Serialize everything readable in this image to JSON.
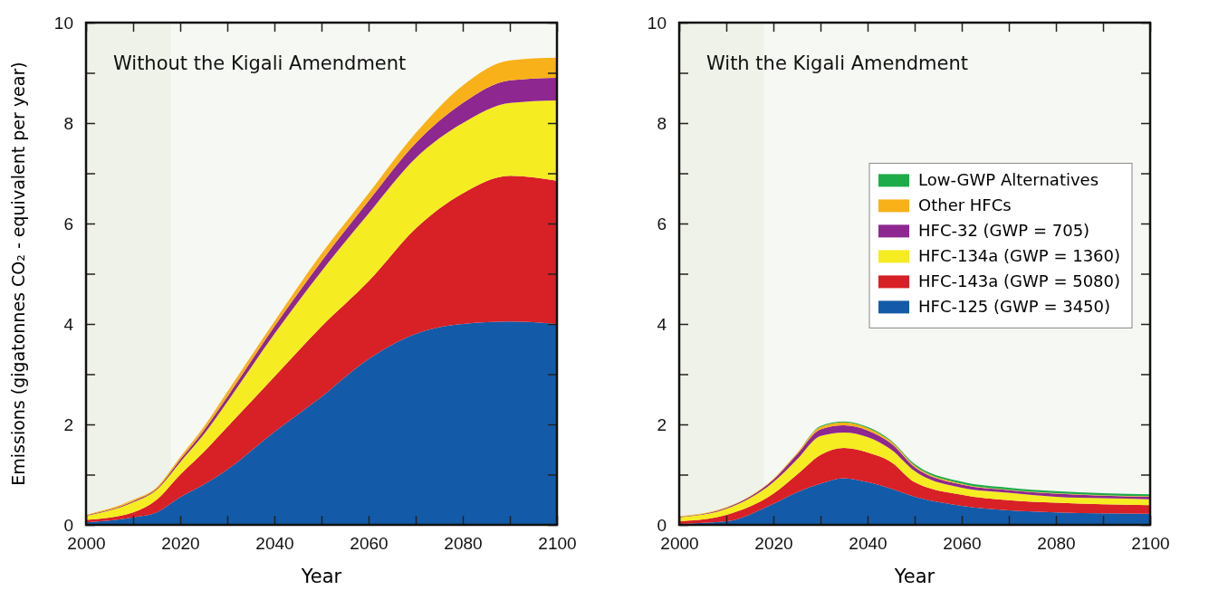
{
  "chart_data": [
    {
      "type": "area",
      "stacked": true,
      "title": "Without the Kigali Amendment",
      "xlabel": "Year",
      "ylabel": "Emissions (gigatonnes CO₂ - equivalent per year)",
      "x": [
        2000,
        2010,
        2015,
        2020,
        2025,
        2030,
        2040,
        2050,
        2060,
        2070,
        2080,
        2090,
        2100
      ],
      "series": [
        {
          "color": "#135ba8",
          "values": [
            0.05,
            0.15,
            0.25,
            0.55,
            0.8,
            1.1,
            1.85,
            2.55,
            3.3,
            3.8,
            4.0,
            4.05,
            4.0
          ]
        },
        {
          "color": "#d82027",
          "values": [
            0.05,
            0.1,
            0.25,
            0.45,
            0.65,
            0.85,
            1.1,
            1.4,
            1.55,
            2.1,
            2.6,
            2.9,
            2.85
          ]
        },
        {
          "color": "#f5ec22",
          "values": [
            0.08,
            0.2,
            0.2,
            0.25,
            0.35,
            0.5,
            0.85,
            1.1,
            1.35,
            1.4,
            1.4,
            1.45,
            1.6
          ]
        },
        {
          "color": "#8e278f",
          "values": [
            0.01,
            0.02,
            0.02,
            0.05,
            0.08,
            0.1,
            0.15,
            0.2,
            0.25,
            0.3,
            0.4,
            0.45,
            0.45
          ]
        },
        {
          "color": "#f8b119",
          "values": [
            0.01,
            0.03,
            0.03,
            0.05,
            0.07,
            0.1,
            0.1,
            0.15,
            0.15,
            0.2,
            0.35,
            0.4,
            0.4
          ]
        }
      ],
      "xlim": [
        2000,
        2100
      ],
      "xticks": [
        2000,
        {
          "value": 2010,
          "label": null
        },
        2020,
        {
          "value": 2030,
          "label": null
        },
        2040,
        {
          "value": 2050,
          "label": null
        },
        2060,
        {
          "value": 2070,
          "label": null
        },
        2080,
        {
          "value": 2090,
          "label": null
        },
        2100
      ],
      "ylim": [
        0,
        10
      ],
      "yticks": [
        0,
        {
          "value": 1,
          "label": null
        },
        2,
        {
          "value": 3,
          "label": null
        },
        4,
        {
          "value": 5,
          "label": null
        },
        6,
        {
          "value": 7,
          "label": null
        },
        8,
        {
          "value": 9,
          "label": null
        },
        10
      ],
      "bands": [
        {
          "axis": "x",
          "from": 2000,
          "to": 2018,
          "color": "#eef2e8"
        }
      ],
      "legend": false
    },
    {
      "type": "area",
      "stacked": true,
      "title": "With the Kigali Amendment",
      "xlabel": "Year",
      "x": [
        2000,
        2010,
        2020,
        2025,
        2030,
        2035,
        2040,
        2045,
        2050,
        2060,
        2070,
        2080,
        2090,
        2100
      ],
      "series": [
        {
          "name": "HFC-125 (GWP = 3450)",
          "color": "#135ba8",
          "values": [
            0.02,
            0.07,
            0.42,
            0.65,
            0.82,
            0.93,
            0.85,
            0.72,
            0.56,
            0.38,
            0.29,
            0.25,
            0.23,
            0.22
          ]
        },
        {
          "name": "HFC-143a (GWP = 5080)",
          "color": "#d82027",
          "values": [
            0.05,
            0.13,
            0.2,
            0.35,
            0.57,
            0.6,
            0.59,
            0.53,
            0.29,
            0.22,
            0.2,
            0.19,
            0.18,
            0.17
          ]
        },
        {
          "name": "HFC-134a (GWP = 1360)",
          "color": "#f5ec22",
          "values": [
            0.08,
            0.12,
            0.23,
            0.3,
            0.38,
            0.31,
            0.31,
            0.25,
            0.22,
            0.14,
            0.15,
            0.12,
            0.12,
            0.12
          ]
        },
        {
          "name": "HFC-32 (GWP = 705)",
          "color": "#8e278f",
          "values": [
            0.01,
            0.02,
            0.05,
            0.1,
            0.13,
            0.14,
            0.13,
            0.12,
            0.08,
            0.06,
            0.05,
            0.06,
            0.05,
            0.05
          ]
        },
        {
          "name": "Other HFCs",
          "color": "#f8b119",
          "values": [
            0.01,
            0.01,
            0.02,
            0.03,
            0.05,
            0.06,
            0.05,
            0.04,
            0.03,
            0.02,
            0.01,
            0.01,
            0.01,
            0.01
          ]
        },
        {
          "name": "Low-GWP Alternatives",
          "color": "#1eab4a",
          "values": [
            0,
            0,
            0,
            0,
            0.02,
            0.02,
            0.02,
            0.02,
            0.03,
            0.04,
            0.04,
            0.04,
            0.04,
            0.04
          ]
        }
      ],
      "xlim": [
        2000,
        2100
      ],
      "xticks": [
        2000,
        {
          "value": 2010,
          "label": null
        },
        2020,
        {
          "value": 2030,
          "label": null
        },
        2040,
        {
          "value": 2050,
          "label": null
        },
        2060,
        {
          "value": 2070,
          "label": null
        },
        2080,
        {
          "value": 2090,
          "label": null
        },
        2100
      ],
      "ylim": [
        0,
        10
      ],
      "yticks": [
        0,
        {
          "value": 1,
          "label": null
        },
        2,
        {
          "value": 3,
          "label": null
        },
        4,
        {
          "value": 5,
          "label": null
        },
        6,
        {
          "value": 7,
          "label": null
        },
        8,
        {
          "value": 9,
          "label": null
        },
        10
      ],
      "bands": [
        {
          "axis": "x",
          "from": 2000,
          "to": 2018,
          "color": "#eef2e8"
        }
      ],
      "legend": "right"
    }
  ]
}
